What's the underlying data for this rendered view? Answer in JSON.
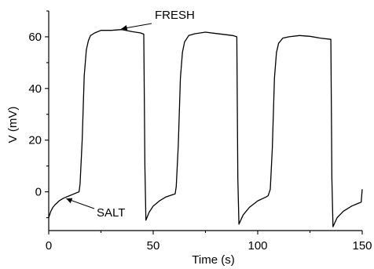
{
  "chart_data": {
    "type": "line",
    "xlabel": "Time (s)",
    "ylabel": "V (mV)",
    "xlim": [
      0,
      150
    ],
    "ylim": [
      -15,
      70
    ],
    "x_ticks": [
      0,
      50,
      100,
      150
    ],
    "y_ticks": [
      0,
      20,
      40,
      60
    ],
    "grid": false,
    "series": [
      {
        "x": [
          0,
          1,
          2,
          3,
          5,
          7,
          10,
          13,
          14.5,
          15,
          16,
          17,
          18,
          19,
          20,
          22,
          25,
          30,
          35,
          40,
          44,
          45.5,
          46,
          46.5,
          48,
          50,
          53,
          56,
          59,
          60.5,
          61,
          62,
          63,
          64,
          65,
          67,
          70,
          75,
          80,
          85,
          88,
          90,
          90.5,
          91,
          93,
          96,
          100,
          104,
          105,
          106,
          107,
          108,
          109,
          110,
          112,
          115,
          120,
          125,
          130,
          135,
          135.5,
          136,
          138,
          141,
          145,
          148,
          149.5,
          150
        ],
        "y": [
          -10,
          -7.5,
          -6,
          -5,
          -3.5,
          -2.5,
          -1.5,
          -0.5,
          0,
          3,
          20,
          45,
          55,
          58.5,
          60.5,
          61.5,
          62.5,
          62.5,
          62.8,
          62,
          61.5,
          61,
          10,
          -11,
          -8,
          -5.5,
          -3.5,
          -2,
          -1.2,
          -0.8,
          2,
          18,
          44,
          54,
          58,
          60.5,
          61.2,
          61.8,
          61.3,
          60.8,
          60.5,
          60,
          5,
          -12.5,
          -9,
          -6,
          -3.5,
          -2,
          -1.5,
          1,
          17,
          44,
          54,
          57.5,
          59.5,
          60,
          60.5,
          60.2,
          59.5,
          59,
          5,
          -13.5,
          -10,
          -7.5,
          -5.5,
          -4.5,
          -4,
          1
        ]
      }
    ],
    "annotations": [
      {
        "text": "FRESH",
        "x": 34,
        "y": 62.8
      },
      {
        "text": "SALT",
        "x": 8,
        "y": -2
      }
    ]
  }
}
